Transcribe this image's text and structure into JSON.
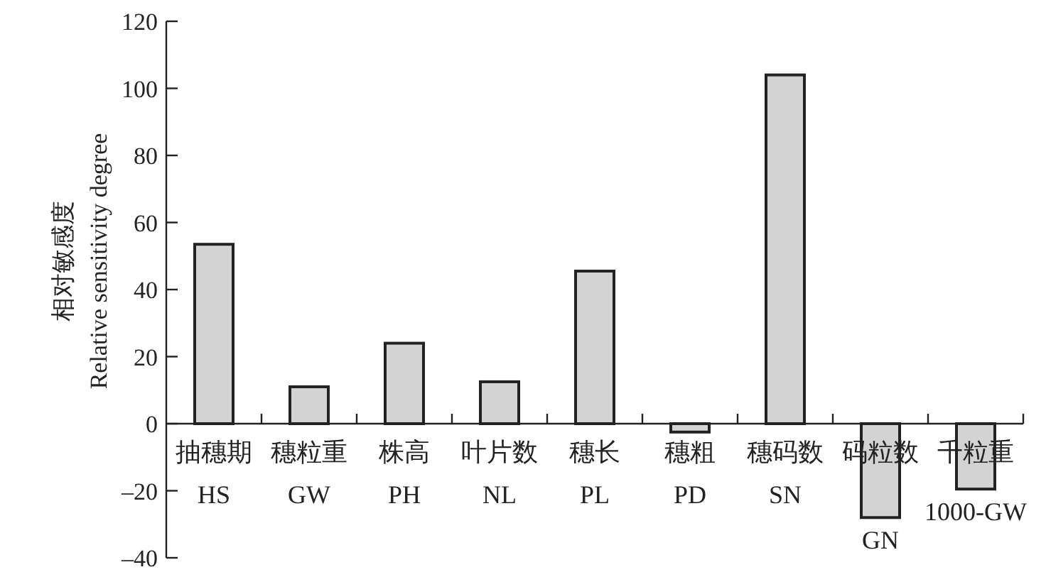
{
  "chart_data": {
    "type": "bar",
    "ylabel": "相对敏感度\nRelative sensitivity degree",
    "categories": [
      "抽穗期\nHS",
      "穗粒重\nGW",
      "株高\nPH",
      "叶片数\nNL",
      "穗长\nPL",
      "穗粗\nPD",
      "穗码数\nSN",
      "码粒数\nGN",
      "千粒重\n1000-GW"
    ],
    "values": [
      53.5,
      11,
      24,
      12.5,
      45.5,
      -2.5,
      104,
      -28,
      -19.5
    ],
    "color": "#d3d3d3",
    "ylim": [
      -40,
      120
    ],
    "yticks": [
      {
        "value": -40,
        "label": "–40"
      },
      {
        "value": -20,
        "label": "–20"
      },
      0,
      20,
      40,
      60,
      80,
      100,
      120
    ],
    "grid": false
  }
}
